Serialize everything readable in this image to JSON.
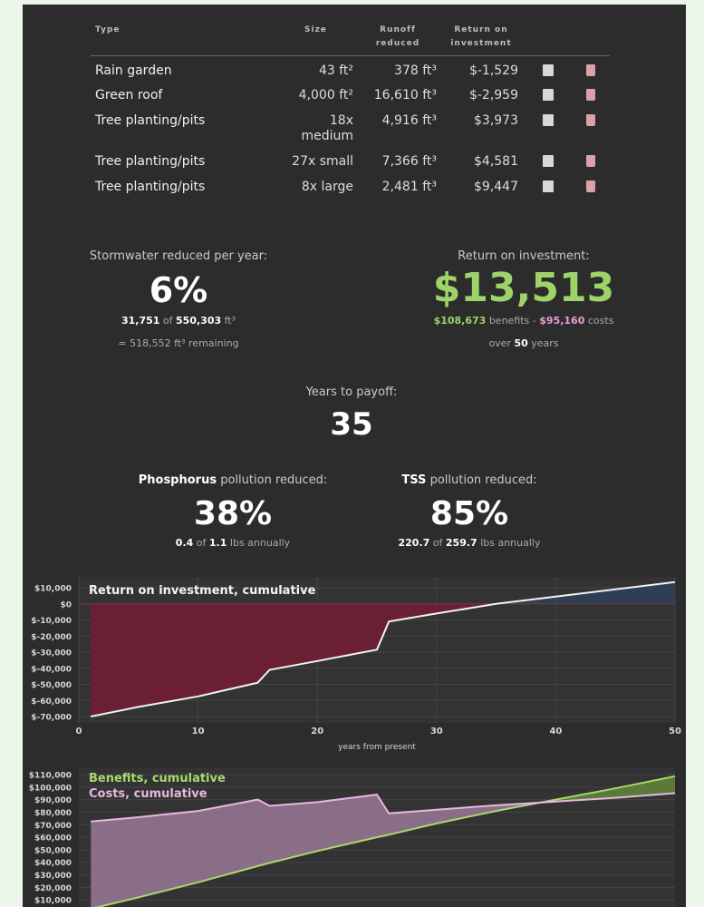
{
  "table": {
    "headers": [
      "Type",
      "Size",
      "Runoff reduced",
      "Return on investment"
    ],
    "rows": [
      [
        "Rain garden",
        "43 ft²",
        "378 ft³",
        "$-1,529"
      ],
      [
        "Green roof",
        "4,000 ft²",
        "16,610 ft³",
        "$-2,959"
      ],
      [
        "Tree planting/pits",
        "18x medium",
        "4,916 ft³",
        "$3,973"
      ],
      [
        "Tree planting/pits",
        "27x small",
        "7,366 ft³",
        "$4,581"
      ],
      [
        "Tree planting/pits",
        "8x large",
        "2,481 ft³",
        "$9,447"
      ]
    ]
  },
  "stormwater": {
    "label": "Stormwater reduced per year:",
    "value": "6%",
    "reduced": "31,751",
    "of": "of",
    "total": "550,303",
    "unit": "ft³",
    "remaining": "= 518,552 ft³ remaining"
  },
  "roi": {
    "label": "Return on investment:",
    "value": "$13,513",
    "benefits": "$108,673",
    "benefits_text": "benefits -",
    "costs": "$95,160",
    "costs_text": "costs",
    "over": "over",
    "years": "50",
    "years_text": "years"
  },
  "payoff": {
    "label": "Years to payoff:",
    "value": "35"
  },
  "phosphorus": {
    "name": "Phosphorus",
    "label": "pollution reduced:",
    "value": "38%",
    "reduced": "0.4",
    "of": "of",
    "total": "1.1",
    "unit": "lbs annually"
  },
  "tss": {
    "name": "TSS",
    "label": "pollution reduced:",
    "value": "85%",
    "reduced": "220.7",
    "of": "of",
    "total": "259.7",
    "unit": "lbs annually"
  },
  "chart_data": [
    {
      "type": "area",
      "title": "Return on investment, cumulative",
      "x_label": "years from present",
      "x": [
        1,
        5,
        10,
        15,
        16,
        20,
        25,
        26,
        30,
        35,
        40,
        45,
        50
      ],
      "values": [
        -70000,
        -64000,
        -57500,
        -49000,
        -41000,
        -35500,
        -28500,
        -11000,
        -6000,
        0,
        4500,
        9000,
        13513
      ],
      "color": "#f2f2f2",
      "fill_negative": "#6b1f33",
      "fill_positive": "#2e3f55",
      "xlim": [
        0,
        50
      ],
      "xticks": [
        0,
        10,
        20,
        30,
        40,
        50
      ],
      "ylim": [
        -70000,
        10000
      ],
      "yticks": [
        {
          "value": 10000,
          "label": "$10,000"
        },
        {
          "value": 0,
          "label": "$0"
        },
        {
          "value": -10000,
          "label": "$-10,000"
        },
        {
          "value": -20000,
          "label": "$-20,000"
        },
        {
          "value": -30000,
          "label": "$-30,000"
        },
        {
          "value": -40000,
          "label": "$-40,000"
        },
        {
          "value": -50000,
          "label": "$-50,000"
        },
        {
          "value": -60000,
          "label": "$-60,000"
        },
        {
          "value": -70000,
          "label": "$-70,000"
        }
      ],
      "grid": true
    },
    {
      "type": "area",
      "x": [
        1,
        5,
        10,
        15,
        16,
        20,
        25,
        26,
        30,
        35,
        40,
        45,
        50
      ],
      "series": [
        {
          "name": "Benefits, cumulative",
          "color": "#a9d86e",
          "fill": "#5b7a3a",
          "values": [
            3000,
            12000,
            24000,
            37000,
            39500,
            49000,
            60000,
            62000,
            71000,
            81000,
            90000,
            99000,
            108673
          ]
        },
        {
          "name": "Costs, cumulative",
          "color": "#e6b8e0",
          "fill": "#8a6d86",
          "values": [
            72500,
            76000,
            81000,
            90000,
            85000,
            88000,
            94000,
            79000,
            82000,
            85500,
            88500,
            91500,
            95160
          ]
        }
      ],
      "xlim": [
        0,
        50
      ],
      "ylim": [
        0,
        110000
      ],
      "yticks": [
        {
          "value": 110000,
          "label": "$110,000"
        },
        {
          "value": 100000,
          "label": "$100,000"
        },
        {
          "value": 90000,
          "label": "$90,000"
        },
        {
          "value": 80000,
          "label": "$80,000"
        },
        {
          "value": 70000,
          "label": "$70,000"
        },
        {
          "value": 60000,
          "label": "$60,000"
        },
        {
          "value": 50000,
          "label": "$50,000"
        },
        {
          "value": 40000,
          "label": "$40,000"
        },
        {
          "value": 30000,
          "label": "$30,000"
        },
        {
          "value": 20000,
          "label": "$20,000"
        },
        {
          "value": 10000,
          "label": "$10,000"
        }
      ],
      "grid": true
    }
  ]
}
